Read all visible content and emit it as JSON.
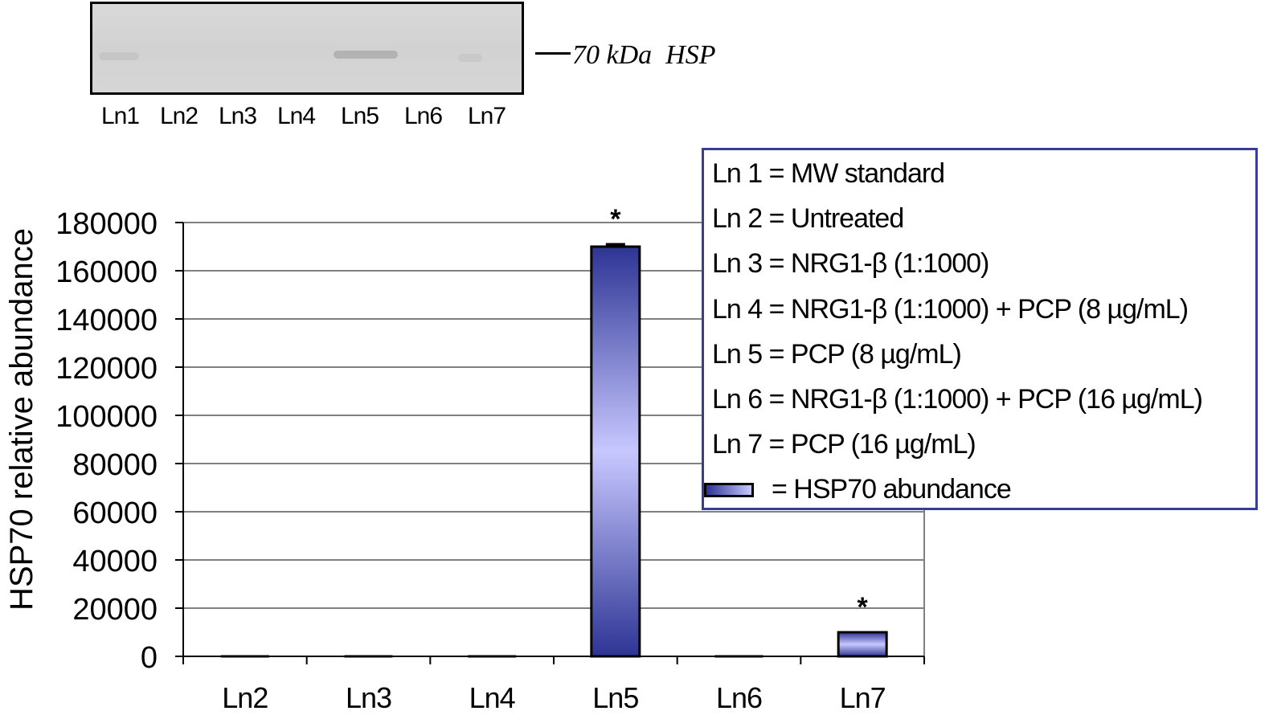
{
  "blot": {
    "lane_labels": [
      "Ln1",
      "Ln2",
      "Ln3",
      "Ln4",
      "Ln5",
      "Ln6",
      "Ln7"
    ],
    "marker_label": "70 kDa  HSP"
  },
  "legend": {
    "items": [
      "Ln 1 = MW standard",
      "Ln 2 = Untreated",
      "Ln 3 = NRG1-β (1:1000)",
      "Ln 4 = NRG1-β (1:1000) + PCP (8 µg/mL)",
      "Ln 5 = PCP (8 µg/mL)",
      "Ln 6 = NRG1-β (1:1000) + PCP (16 µg/mL)",
      "Ln 7 = PCP (16 µg/mL)"
    ],
    "swatch_label": "= HSP70 abundance"
  },
  "chart_data": {
    "type": "bar",
    "categories": [
      "Ln2",
      "Ln3",
      "Ln4",
      "Ln5",
      "Ln6",
      "Ln7"
    ],
    "series": [
      {
        "name": "HSP70 abundance",
        "values": [
          0,
          0,
          0,
          170000,
          0,
          10000
        ]
      }
    ],
    "error_bars": [
      0,
      0,
      0,
      1000,
      0,
      0
    ],
    "significance_markers": [
      "",
      "",
      "",
      "*",
      "",
      "*"
    ],
    "ylabel": "HSP70 relative abundance",
    "xlabel": "",
    "ylim": [
      0,
      180000
    ],
    "yticks": [
      0,
      20000,
      40000,
      60000,
      80000,
      100000,
      120000,
      140000,
      160000,
      180000
    ],
    "grid": true,
    "legend_position": "top-right",
    "colors": {
      "bar_dark": "#2d3494",
      "bar_light": "#c8c8ff",
      "grid": "#000000",
      "frame": "#808080"
    }
  }
}
